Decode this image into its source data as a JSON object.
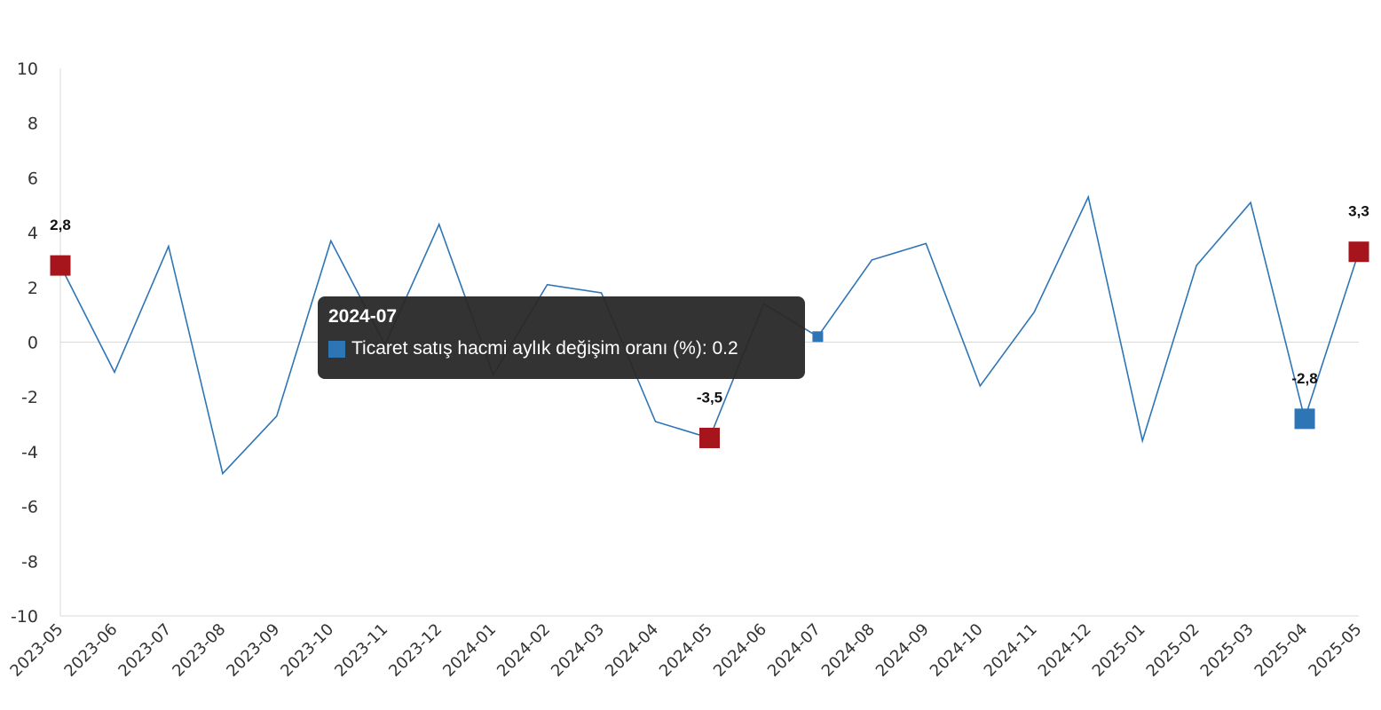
{
  "chart_data": {
    "type": "line",
    "title": "",
    "xlabel": "",
    "ylabel": "",
    "ylim": [
      -10,
      10
    ],
    "yticks": [
      10,
      8,
      6,
      4,
      2,
      0,
      -2,
      -4,
      -6,
      -8,
      -10
    ],
    "grid": false,
    "categories": [
      "2023-05",
      "2023-06",
      "2023-07",
      "2023-08",
      "2023-09",
      "2023-10",
      "2023-11",
      "2023-12",
      "2024-01",
      "2024-02",
      "2024-03",
      "2024-04",
      "2024-05",
      "2024-06",
      "2024-07",
      "2024-08",
      "2024-09",
      "2024-10",
      "2024-11",
      "2024-12",
      "2025-01",
      "2025-02",
      "2025-03",
      "2025-04",
      "2025-05"
    ],
    "series": [
      {
        "name": "Ticaret satış hacmi aylık değişim oranı (%)",
        "color": "#2e75b6",
        "values": [
          2.8,
          -1.1,
          3.5,
          -4.8,
          -2.7,
          3.7,
          -0.1,
          4.3,
          -1.2,
          2.1,
          1.8,
          -2.9,
          -3.5,
          1.4,
          0.2,
          3.0,
          3.6,
          -1.6,
          1.1,
          5.3,
          -3.6,
          2.8,
          5.1,
          -2.8,
          3.3
        ]
      }
    ],
    "highlights": [
      {
        "category": "2023-05",
        "value": 2.8,
        "label": "2,8",
        "color": "#a6141c"
      },
      {
        "category": "2024-05",
        "value": -3.5,
        "label": "-3,5",
        "color": "#a6141c"
      },
      {
        "category": "2025-04",
        "value": -2.8,
        "label": "-2,8",
        "color": "#2e75b6"
      },
      {
        "category": "2025-05",
        "value": 3.3,
        "label": "3,3",
        "color": "#a6141c"
      }
    ],
    "tooltip": {
      "category": "2024-07",
      "text": "Ticaret satış hacmi aylık değişim oranı (%): 0.2",
      "value": 0.2,
      "color": "#2e75b6"
    }
  }
}
